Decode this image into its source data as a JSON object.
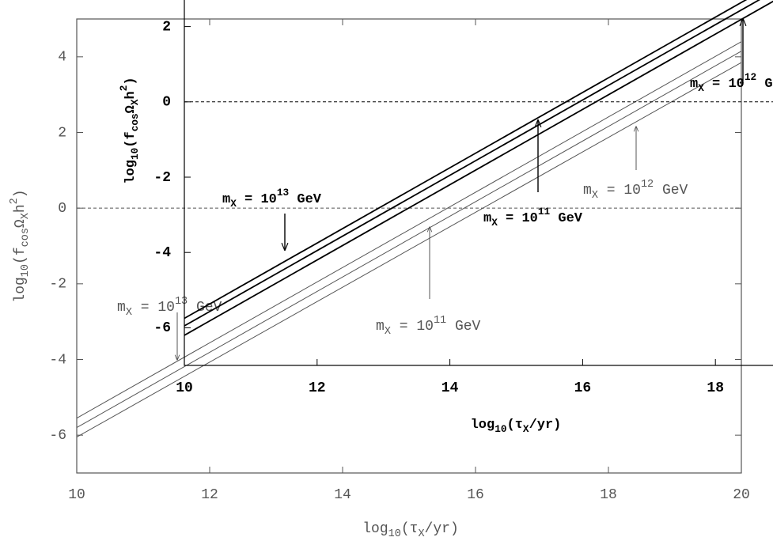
{
  "chart_data": [
    {
      "type": "line",
      "color": "#555555",
      "x": [
        10,
        20
      ],
      "series": [
        {
          "values": [
            -5.55,
            4.4
          ]
        },
        {
          "values": [
            -5.8,
            4.15
          ]
        },
        {
          "values": [
            -6.05,
            3.85
          ]
        }
      ],
      "xlim": [
        10,
        20
      ],
      "ylim": [
        -7,
        5
      ],
      "xticks": [
        10,
        12,
        14,
        16,
        18,
        20
      ],
      "yticks": [
        -6,
        -4,
        -2,
        0,
        2,
        4
      ],
      "reference_line": 0,
      "x_label": [
        "log",
        "10",
        "(τ",
        "X",
        "/yr)"
      ],
      "y_label": [
        "log",
        "10",
        "(f",
        "cos",
        "Ω",
        "X",
        "h",
        "2",
        ")"
      ],
      "annotations": [
        [
          "m",
          "X",
          " = 10",
          "13",
          " GeV"
        ],
        [
          "m",
          "X",
          " = 10",
          "11",
          " GeV"
        ],
        [
          "m",
          "X",
          " = 10",
          "12",
          " GeV"
        ]
      ]
    },
    {
      "type": "line",
      "color": "#000000",
      "x": [
        10,
        20
      ],
      "series": [
        {
          "values": [
            -5.75,
            4.25
          ]
        },
        {
          "values": [
            -5.95,
            4.05
          ]
        },
        {
          "values": [
            -6.2,
            3.8
          ]
        }
      ],
      "xlim": [
        10,
        20
      ],
      "ylim": [
        -7,
        3
      ],
      "xticks": [
        10,
        12,
        14,
        16,
        18
      ],
      "yticks": [
        -6,
        -4,
        -2,
        0,
        2
      ],
      "reference_line": 0,
      "x_label": [
        "log",
        "10",
        "(τ",
        "X",
        "/yr)"
      ],
      "y_label": [
        "log",
        "10",
        "(f",
        "cos",
        "Ω",
        "X",
        "h",
        "2",
        ")"
      ],
      "annotations": [
        [
          "m",
          "X",
          " = 10",
          "13",
          " GeV"
        ],
        [
          "m",
          "X",
          " = 10",
          "11",
          " GeV"
        ],
        [
          "m",
          "X",
          " = 10",
          "12",
          " GeV"
        ]
      ]
    }
  ]
}
